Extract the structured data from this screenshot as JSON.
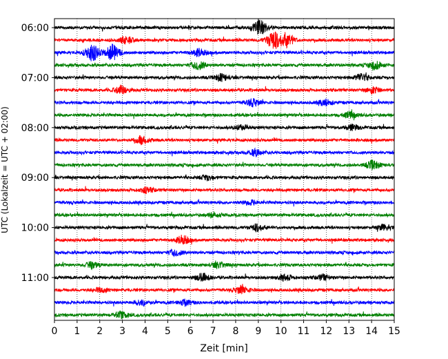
{
  "chart_data": {
    "type": "line",
    "title": "",
    "xlabel": "Zeit  [min]",
    "ylabel": "UTC (Lokalzeit = UTC + 02:00)",
    "xlim": [
      0,
      15
    ],
    "x_ticks": [
      "0",
      "1",
      "2",
      "3",
      "4",
      "5",
      "6",
      "7",
      "8",
      "9",
      "10",
      "11",
      "12",
      "13",
      "14",
      "15"
    ],
    "y_tick_labels": [
      "06:00",
      "07:00",
      "08:00",
      "09:00",
      "10:00",
      "11:00"
    ],
    "grid": "vertical dotted at each minute",
    "trace_interval_min": 15,
    "trace_colors": [
      "#000000",
      "#ff0000",
      "#0000ff",
      "#008000"
    ],
    "series": [
      {
        "start": "06:00",
        "color": "#000000",
        "events": [
          [
            9.0,
            1.8
          ]
        ]
      },
      {
        "start": "06:15",
        "color": "#ff0000",
        "events": [
          [
            9.6,
            2.2
          ],
          [
            10.2,
            1.6
          ],
          [
            3.1,
            0.8
          ]
        ]
      },
      {
        "start": "06:30",
        "color": "#0000ff",
        "events": [
          [
            1.6,
            2.0
          ],
          [
            2.5,
            1.8
          ],
          [
            6.3,
            0.9
          ]
        ]
      },
      {
        "start": "06:45",
        "color": "#008000",
        "events": [
          [
            6.3,
            1.0
          ],
          [
            14.1,
            0.9
          ]
        ]
      },
      {
        "start": "07:00",
        "color": "#000000",
        "events": [
          [
            7.3,
            0.8
          ],
          [
            13.5,
            0.9
          ]
        ]
      },
      {
        "start": "07:15",
        "color": "#ff0000",
        "events": [
          [
            2.9,
            1.0
          ],
          [
            14.0,
            0.8
          ]
        ]
      },
      {
        "start": "07:30",
        "color": "#0000ff",
        "events": [
          [
            8.7,
            0.8
          ],
          [
            11.9,
            0.7
          ]
        ]
      },
      {
        "start": "07:45",
        "color": "#008000",
        "events": [
          [
            13.0,
            0.7
          ]
        ]
      },
      {
        "start": "08:00",
        "color": "#000000",
        "events": [
          [
            8.2,
            0.6
          ],
          [
            13.1,
            0.6
          ]
        ]
      },
      {
        "start": "08:15",
        "color": "#ff0000",
        "events": [
          [
            3.8,
            0.9
          ]
        ]
      },
      {
        "start": "08:30",
        "color": "#0000ff",
        "events": [
          [
            8.8,
            0.7
          ]
        ]
      },
      {
        "start": "08:45",
        "color": "#008000",
        "events": [
          [
            14.0,
            1.0
          ]
        ]
      },
      {
        "start": "09:00",
        "color": "#000000",
        "events": [
          [
            6.7,
            0.6
          ]
        ]
      },
      {
        "start": "09:15",
        "color": "#ff0000",
        "events": [
          [
            4.0,
            0.6
          ]
        ]
      },
      {
        "start": "09:30",
        "color": "#0000ff",
        "events": [
          [
            8.6,
            0.5
          ]
        ]
      },
      {
        "start": "09:45",
        "color": "#008000",
        "events": [
          [
            7.0,
            0.5
          ]
        ]
      },
      {
        "start": "10:00",
        "color": "#000000",
        "events": [
          [
            8.9,
            0.8
          ],
          [
            14.5,
            0.6
          ]
        ]
      },
      {
        "start": "10:15",
        "color": "#ff0000",
        "events": [
          [
            5.6,
            1.0
          ]
        ]
      },
      {
        "start": "10:30",
        "color": "#0000ff",
        "events": [
          [
            5.3,
            0.7
          ]
        ]
      },
      {
        "start": "10:45",
        "color": "#008000",
        "events": [
          [
            1.6,
            0.7
          ],
          [
            7.2,
            0.7
          ]
        ]
      },
      {
        "start": "11:00",
        "color": "#000000",
        "events": [
          [
            6.5,
            0.9
          ],
          [
            10.1,
            0.7
          ],
          [
            11.8,
            0.6
          ]
        ]
      },
      {
        "start": "11:15",
        "color": "#ff0000",
        "events": [
          [
            8.2,
            0.9
          ],
          [
            2.0,
            0.5
          ]
        ]
      },
      {
        "start": "11:30",
        "color": "#0000ff",
        "events": [
          [
            3.8,
            0.6
          ],
          [
            5.7,
            0.6
          ]
        ]
      },
      {
        "start": "11:45",
        "color": "#008000",
        "events": [
          [
            2.9,
            0.7
          ]
        ]
      }
    ]
  }
}
